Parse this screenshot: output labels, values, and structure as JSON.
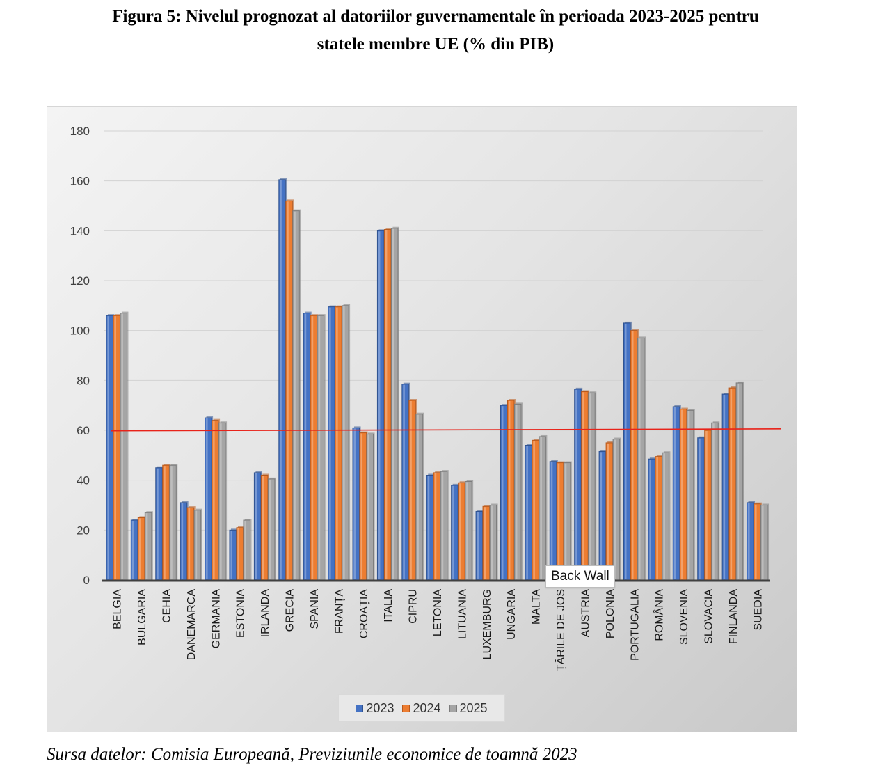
{
  "figure": {
    "title_line1": "Figura 5: Nivelul prognozat al datoriilor guvernamentale în perioada 2023-2025 pentru",
    "title_line2": "statele membre UE (% din PIB)",
    "source": "Sursa datelor: Comisia Europeană, Previziunile economice de toamnă 2023",
    "tooltip": "Back Wall"
  },
  "colors": {
    "series_2023": "#4472C4",
    "series_2024": "#ED7D31",
    "series_2025": "#A5A5A5",
    "reference_line": "#E8231A"
  },
  "chart_data": {
    "type": "bar",
    "categories": [
      "BELGIA",
      "BULGARIA",
      "CEHIA",
      "DANEMARCA",
      "GERMANIA",
      "ESTONIA",
      "IRLANDA",
      "GRECIA",
      "SPANIA",
      "FRANȚA",
      "CROAȚIA",
      "ITALIA",
      "CIPRU",
      "LETONIA",
      "LITUANIA",
      "LUXEMBURG",
      "UNGARIA",
      "MALTA",
      "ȚĂRILE DE JOS",
      "AUSTRIA",
      "POLONIA",
      "PORTUGALIA",
      "ROMÂNIA",
      "SLOVENIA",
      "SLOVACIA",
      "FINLANDA",
      "SUEDIA"
    ],
    "series": [
      {
        "name": "2023",
        "values": [
          106,
          24,
          45,
          31,
          65,
          20,
          43,
          160.5,
          107,
          109.5,
          61,
          140,
          78.5,
          42,
          38,
          27.5,
          70,
          54,
          47.5,
          76.5,
          51.5,
          103,
          48.5,
          69.5,
          57,
          74.5,
          31
        ]
      },
      {
        "name": "2024",
        "values": [
          106,
          25,
          46,
          29,
          64,
          21,
          42,
          152,
          106,
          109.5,
          59,
          140.5,
          72,
          43,
          39,
          29.5,
          72,
          56,
          47,
          75.5,
          55,
          100,
          49.5,
          68.5,
          60,
          77,
          30.5
        ]
      },
      {
        "name": "2025",
        "values": [
          107,
          27,
          46,
          28,
          63,
          24,
          40.5,
          148,
          106,
          110,
          58.5,
          141,
          66.5,
          43.5,
          39.5,
          30,
          70.5,
          57.5,
          47,
          75,
          56.5,
          97,
          51,
          68,
          63,
          79,
          30
        ]
      }
    ],
    "reference_line": {
      "y_start": 59.8,
      "y_end": 60.6
    },
    "ylim": [
      0,
      180
    ],
    "yticks": [
      0,
      20,
      40,
      60,
      80,
      100,
      120,
      140,
      160,
      180
    ],
    "grid": true,
    "legend": "bottom",
    "xlabel": "",
    "ylabel": ""
  }
}
